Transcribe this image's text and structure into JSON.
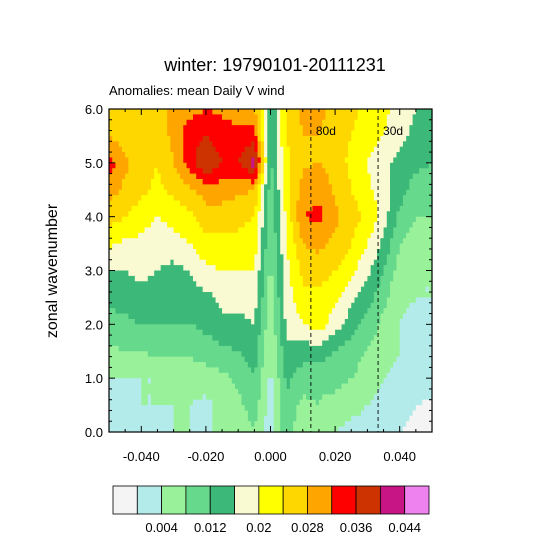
{
  "chart_data": {
    "type": "heatmap",
    "title": "winter: 19790101-20111231",
    "subtitle": "Anomalies: mean Daily V wind",
    "xlabel": "",
    "ylabel": "zonal wavenumber",
    "xlim": [
      -0.05,
      0.05
    ],
    "ylim": [
      0,
      6
    ],
    "x_ticks": [
      {
        "value": -0.04,
        "label": "-0.040"
      },
      {
        "value": -0.02,
        "label": "-0.020"
      },
      {
        "value": 0.0,
        "label": "0.000"
      },
      {
        "value": 0.02,
        "label": "0.020"
      },
      {
        "value": 0.04,
        "label": "0.040"
      }
    ],
    "y_ticks": [
      {
        "value": 0,
        "label": "0.0"
      },
      {
        "value": 1,
        "label": "1.0"
      },
      {
        "value": 2,
        "label": "2.0"
      },
      {
        "value": 3,
        "label": "3.0"
      },
      {
        "value": 4,
        "label": "4.0"
      },
      {
        "value": 5,
        "label": "5.0"
      },
      {
        "value": 6,
        "label": "6.0"
      }
    ],
    "period_lines": [
      {
        "label": "80d",
        "frequency": 0.0125
      },
      {
        "label": "30d",
        "frequency": 0.0333
      }
    ],
    "levels": [
      0.004,
      0.008,
      0.012,
      0.016,
      0.02,
      0.024,
      0.028,
      0.032,
      0.036,
      0.04,
      0.044,
      0.048
    ],
    "colors": [
      "#f4f4f4",
      "#b3ebeb",
      "#99f299",
      "#66d98c",
      "#3cb878",
      "#f9f9d2",
      "#ffff00",
      "#ffd700",
      "#ffa500",
      "#ff0000",
      "#cc3300",
      "#c71585",
      "#ee82ee"
    ],
    "colorbar_labels": [
      {
        "after_bin": 1,
        "label": "0.004"
      },
      {
        "after_bin": 3,
        "label": "0.012"
      },
      {
        "after_bin": 5,
        "label": "0.02"
      },
      {
        "after_bin": 7,
        "label": "0.028"
      },
      {
        "after_bin": 9,
        "label": "0.036"
      },
      {
        "after_bin": 11,
        "label": "0.044"
      }
    ],
    "x": [
      -0.05,
      -0.045,
      -0.04,
      -0.035,
      -0.03,
      -0.025,
      -0.02,
      -0.015,
      -0.01,
      -0.005,
      0.0,
      0.005,
      0.01,
      0.015,
      0.02,
      0.025,
      0.03,
      0.035,
      0.04,
      0.045,
      0.05
    ],
    "y": [
      0,
      0.5,
      1,
      1.5,
      2,
      2.5,
      3,
      3.5,
      4,
      4.5,
      5,
      5.5,
      6
    ],
    "z": [
      [
        0.006,
        0.006,
        0.006,
        0.007,
        0.008,
        0.008,
        0.008,
        0.008,
        0.009,
        0.012,
        0.005,
        0.015,
        0.008,
        0.009,
        0.008,
        0.007,
        0.007,
        0.006,
        0.004,
        0.003,
        0.003
      ],
      [
        0.007,
        0.007,
        0.008,
        0.008,
        0.008,
        0.008,
        0.007,
        0.009,
        0.011,
        0.014,
        0.006,
        0.015,
        0.011,
        0.012,
        0.01,
        0.009,
        0.008,
        0.007,
        0.006,
        0.004,
        0.003
      ],
      [
        0.008,
        0.008,
        0.008,
        0.008,
        0.009,
        0.009,
        0.01,
        0.011,
        0.013,
        0.016,
        0.007,
        0.017,
        0.014,
        0.013,
        0.014,
        0.012,
        0.01,
        0.008,
        0.007,
        0.007,
        0.007
      ],
      [
        0.011,
        0.012,
        0.012,
        0.013,
        0.013,
        0.013,
        0.014,
        0.015,
        0.016,
        0.018,
        0.008,
        0.019,
        0.018,
        0.018,
        0.016,
        0.014,
        0.012,
        0.01,
        0.008,
        0.007,
        0.007
      ],
      [
        0.014,
        0.015,
        0.016,
        0.016,
        0.016,
        0.016,
        0.017,
        0.019,
        0.019,
        0.02,
        0.009,
        0.021,
        0.024,
        0.026,
        0.022,
        0.018,
        0.014,
        0.011,
        0.008,
        0.007,
        0.007
      ],
      [
        0.017,
        0.018,
        0.019,
        0.018,
        0.018,
        0.018,
        0.019,
        0.021,
        0.021,
        0.022,
        0.01,
        0.022,
        0.027,
        0.027,
        0.025,
        0.021,
        0.018,
        0.013,
        0.009,
        0.008,
        0.008
      ],
      [
        0.02,
        0.02,
        0.021,
        0.02,
        0.019,
        0.02,
        0.023,
        0.024,
        0.024,
        0.024,
        0.011,
        0.023,
        0.029,
        0.03,
        0.028,
        0.025,
        0.021,
        0.016,
        0.01,
        0.008,
        0.008
      ],
      [
        0.025,
        0.023,
        0.023,
        0.021,
        0.022,
        0.024,
        0.027,
        0.027,
        0.027,
        0.026,
        0.012,
        0.024,
        0.032,
        0.033,
        0.031,
        0.028,
        0.024,
        0.019,
        0.012,
        0.01,
        0.01
      ],
      [
        0.03,
        0.028,
        0.026,
        0.024,
        0.026,
        0.027,
        0.03,
        0.03,
        0.029,
        0.028,
        0.013,
        0.025,
        0.036,
        0.037,
        0.033,
        0.03,
        0.027,
        0.022,
        0.015,
        0.012,
        0.012
      ],
      [
        0.034,
        0.031,
        0.029,
        0.027,
        0.029,
        0.031,
        0.034,
        0.034,
        0.033,
        0.032,
        0.014,
        0.026,
        0.034,
        0.035,
        0.031,
        0.028,
        0.025,
        0.022,
        0.018,
        0.014,
        0.014
      ],
      [
        0.038,
        0.033,
        0.03,
        0.028,
        0.032,
        0.038,
        0.044,
        0.04,
        0.04,
        0.046,
        0.015,
        0.027,
        0.031,
        0.032,
        0.03,
        0.027,
        0.024,
        0.021,
        0.019,
        0.017,
        0.016
      ],
      [
        0.032,
        0.03,
        0.029,
        0.03,
        0.033,
        0.039,
        0.04,
        0.038,
        0.037,
        0.038,
        0.016,
        0.028,
        0.032,
        0.032,
        0.03,
        0.028,
        0.026,
        0.024,
        0.021,
        0.019,
        0.017
      ],
      [
        0.03,
        0.029,
        0.03,
        0.031,
        0.033,
        0.034,
        0.036,
        0.035,
        0.034,
        0.033,
        0.016,
        0.029,
        0.033,
        0.033,
        0.031,
        0.029,
        0.027,
        0.025,
        0.022,
        0.02,
        0.018
      ]
    ]
  }
}
